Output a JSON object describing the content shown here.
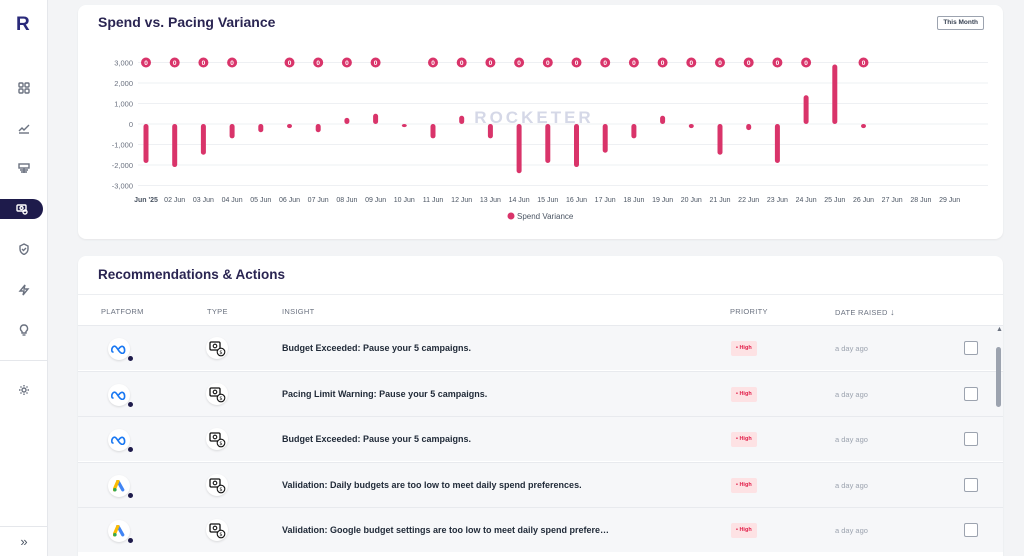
{
  "app": {
    "logo_letter": "R"
  },
  "sidebar": {
    "items": [
      {
        "name": "dashboard",
        "icon": "grid-icon"
      },
      {
        "name": "trends",
        "icon": "trend-chart-icon"
      },
      {
        "name": "budget",
        "icon": "money-stack-icon"
      },
      {
        "name": "spend",
        "icon": "money-settings-icon",
        "active": true
      },
      {
        "name": "guard",
        "icon": "shield-check-icon"
      },
      {
        "name": "automation",
        "icon": "lightning-icon"
      },
      {
        "name": "insights",
        "icon": "lightbulb-icon"
      },
      {
        "name": "settings",
        "icon": "gear-icon"
      }
    ],
    "expand_label": "»"
  },
  "chart_card": {
    "title": "Spend vs. Pacing Variance",
    "period_button": "This Month",
    "watermark": "ROCKETER"
  },
  "chart_data": {
    "type": "bar",
    "title": "Spend vs. Pacing Variance",
    "categories": [
      "Jun '25",
      "02 Jun",
      "03 Jun",
      "04 Jun",
      "05 Jun",
      "06 Jun",
      "07 Jun",
      "08 Jun",
      "09 Jun",
      "10 Jun",
      "11 Jun",
      "12 Jun",
      "13 Jun",
      "14 Jun",
      "15 Jun",
      "16 Jun",
      "17 Jun",
      "18 Jun",
      "19 Jun",
      "20 Jun",
      "21 Jun",
      "22 Jun",
      "23 Jun",
      "24 Jun",
      "25 Jun",
      "26 Jun",
      "27 Jun",
      "28 Jun",
      "29 Jun"
    ],
    "series": [
      {
        "name": "Spend Variance",
        "values": [
          -1900,
          -2100,
          -1500,
          -700,
          -400,
          -200,
          -400,
          300,
          500,
          -150,
          -700,
          400,
          -700,
          -2400,
          -1900,
          -2100,
          -1400,
          -700,
          400,
          -200,
          -1500,
          -300,
          -1900,
          1400,
          2900,
          -200,
          null,
          null,
          null
        ]
      }
    ],
    "markers": {
      "value": 3000,
      "label": "0",
      "categories": [
        "Jun '25",
        "02 Jun",
        "03 Jun",
        "04 Jun",
        "06 Jun",
        "07 Jun",
        "08 Jun",
        "09 Jun",
        "11 Jun",
        "12 Jun",
        "13 Jun",
        "14 Jun",
        "15 Jun",
        "16 Jun",
        "17 Jun",
        "18 Jun",
        "19 Jun",
        "20 Jun",
        "21 Jun",
        "22 Jun",
        "23 Jun",
        "24 Jun",
        "26 Jun"
      ]
    },
    "yticks": [
      "3,000",
      "2,000",
      "1,000",
      "0",
      "-1,000",
      "-2,000",
      "-3,000"
    ],
    "ylim": [
      -3000,
      3000
    ],
    "legend": "bottom",
    "grid": true,
    "color": "#d9346a"
  },
  "recommendations": {
    "title": "Recommendations & Actions",
    "columns": {
      "platform": "PLATFORM",
      "type": "TYPE",
      "insight": "INSIGHT",
      "priority": "PRIORITY",
      "date": "DATE RAISED"
    },
    "rows": [
      {
        "platform": "meta",
        "insight": "Budget Exceeded: Pause your 5 campaigns.",
        "priority": "• High",
        "date": "a day ago"
      },
      {
        "platform": "meta",
        "insight": "Pacing Limit Warning: Pause your 5 campaigns.",
        "priority": "• High",
        "date": "a day ago"
      },
      {
        "platform": "meta",
        "insight": "Budget Exceeded: Pause your 5 campaigns.",
        "priority": "• High",
        "date": "a day ago"
      },
      {
        "platform": "google-ads",
        "insight": "Validation: Daily budgets are too low to meet daily spend preferences.",
        "priority": "• High",
        "date": "a day ago"
      },
      {
        "platform": "google-ads",
        "insight": "Validation: Google budget settings are too low to meet daily spend prefere…",
        "priority": "• High",
        "date": "a day ago"
      }
    ]
  },
  "colors": {
    "brand": "#1e1b4b",
    "accent": "#d9346a",
    "priority_bg": "#fde2e4",
    "priority_text": "#e11d48"
  }
}
